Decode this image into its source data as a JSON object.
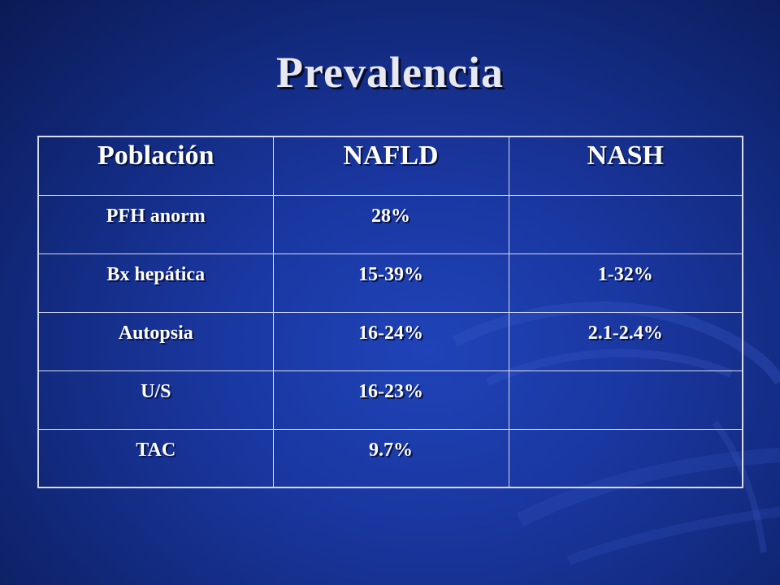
{
  "slide": {
    "title": "Prevalencia"
  },
  "table": {
    "headers": [
      "Población",
      "NAFLD",
      "NASH"
    ],
    "rows": [
      [
        "PFH anorm",
        "28%",
        ""
      ],
      [
        "Bx hepática",
        "15-39%",
        "1-32%"
      ],
      [
        "Autopsia",
        "16-24%",
        "2.1-2.4%"
      ],
      [
        "U/S",
        "16-23%",
        ""
      ],
      [
        "TAC",
        "9.7%",
        ""
      ]
    ]
  },
  "colors": {
    "background": "#1a37a0",
    "text": "#ffffff",
    "table_border": "#d8dcea"
  }
}
